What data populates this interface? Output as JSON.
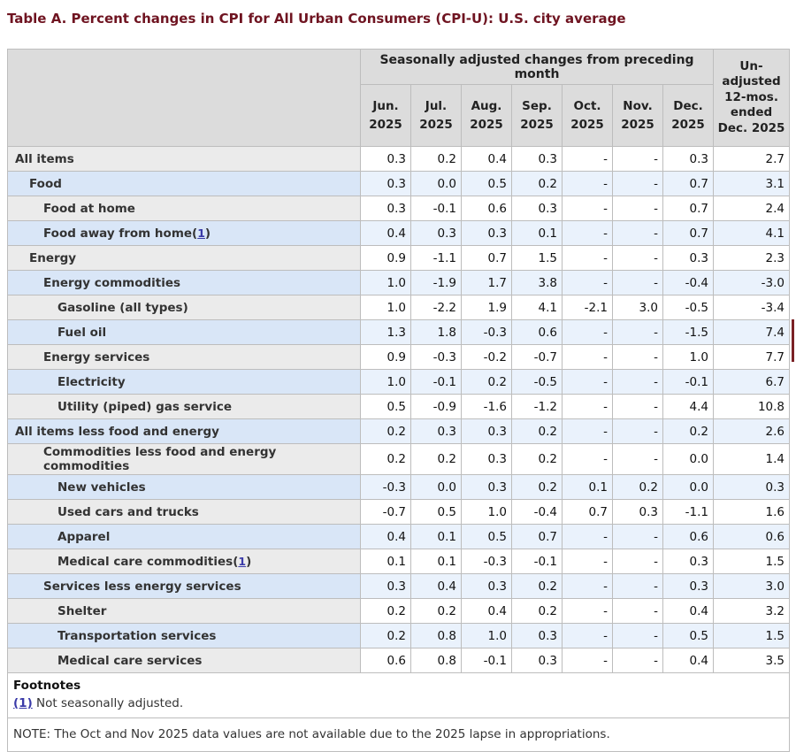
{
  "title": "Table A. Percent changes in CPI for All Urban Consumers (CPI-U): U.S. city average",
  "accent_colors": {
    "title_maroon": "#6f1421",
    "header_gray": "#dcdcdc",
    "row_gray_label": "#ebebeb",
    "row_blue_label": "#d9e6f7",
    "row_blue_data": "#eaf2fc",
    "link_blue": "#3a3aa8",
    "scroll_mark_red": "#7b2125"
  },
  "table": {
    "header": {
      "group_label": "Seasonally adjusted changes from preceding month",
      "unadjusted_label": "Un-adjusted 12-mos. ended Dec. 2025",
      "months": [
        {
          "month": "Jun.",
          "year": "2025"
        },
        {
          "month": "Jul.",
          "year": "2025"
        },
        {
          "month": "Aug.",
          "year": "2025"
        },
        {
          "month": "Sep.",
          "year": "2025"
        },
        {
          "month": "Oct.",
          "year": "2025"
        },
        {
          "month": "Nov.",
          "year": "2025"
        },
        {
          "month": "Dec.",
          "year": "2025"
        }
      ]
    },
    "footnote_marker": {
      "open": "(",
      "ref": "1",
      "close": ")"
    },
    "rows": [
      {
        "label": "All items",
        "indent": 0,
        "footnote": false,
        "values": [
          "0.3",
          "0.2",
          "0.4",
          "0.3",
          "-",
          "-",
          "0.3",
          "2.7"
        ]
      },
      {
        "label": "Food",
        "indent": 1,
        "footnote": false,
        "values": [
          "0.3",
          "0.0",
          "0.5",
          "0.2",
          "-",
          "-",
          "0.7",
          "3.1"
        ]
      },
      {
        "label": "Food at home",
        "indent": 2,
        "footnote": false,
        "values": [
          "0.3",
          "-0.1",
          "0.6",
          "0.3",
          "-",
          "-",
          "0.7",
          "2.4"
        ]
      },
      {
        "label": "Food away from home",
        "indent": 2,
        "footnote": true,
        "values": [
          "0.4",
          "0.3",
          "0.3",
          "0.1",
          "-",
          "-",
          "0.7",
          "4.1"
        ]
      },
      {
        "label": "Energy",
        "indent": 1,
        "footnote": false,
        "values": [
          "0.9",
          "-1.1",
          "0.7",
          "1.5",
          "-",
          "-",
          "0.3",
          "2.3"
        ]
      },
      {
        "label": "Energy commodities",
        "indent": 2,
        "footnote": false,
        "values": [
          "1.0",
          "-1.9",
          "1.7",
          "3.8",
          "-",
          "-",
          "-0.4",
          "-3.0"
        ]
      },
      {
        "label": "Gasoline (all types)",
        "indent": 3,
        "footnote": false,
        "values": [
          "1.0",
          "-2.2",
          "1.9",
          "4.1",
          "-2.1",
          "3.0",
          "-0.5",
          "-3.4"
        ]
      },
      {
        "label": "Fuel oil",
        "indent": 3,
        "footnote": false,
        "values": [
          "1.3",
          "1.8",
          "-0.3",
          "0.6",
          "-",
          "-",
          "-1.5",
          "7.4"
        ]
      },
      {
        "label": "Energy services",
        "indent": 2,
        "footnote": false,
        "values": [
          "0.9",
          "-0.3",
          "-0.2",
          "-0.7",
          "-",
          "-",
          "1.0",
          "7.7"
        ]
      },
      {
        "label": "Electricity",
        "indent": 3,
        "footnote": false,
        "values": [
          "1.0",
          "-0.1",
          "0.2",
          "-0.5",
          "-",
          "-",
          "-0.1",
          "6.7"
        ]
      },
      {
        "label": "Utility (piped) gas service",
        "indent": 3,
        "footnote": false,
        "values": [
          "0.5",
          "-0.9",
          "-1.6",
          "-1.2",
          "-",
          "-",
          "4.4",
          "10.8"
        ]
      },
      {
        "label": "All items less food and energy",
        "indent": 0,
        "footnote": false,
        "values": [
          "0.2",
          "0.3",
          "0.3",
          "0.2",
          "-",
          "-",
          "0.2",
          "2.6"
        ]
      },
      {
        "label": "Commodities less food and energy commodities",
        "indent": 2,
        "footnote": false,
        "values": [
          "0.2",
          "0.2",
          "0.3",
          "0.2",
          "-",
          "-",
          "0.0",
          "1.4"
        ]
      },
      {
        "label": "New vehicles",
        "indent": 3,
        "footnote": false,
        "values": [
          "-0.3",
          "0.0",
          "0.3",
          "0.2",
          "0.1",
          "0.2",
          "0.0",
          "0.3"
        ]
      },
      {
        "label": "Used cars and trucks",
        "indent": 3,
        "footnote": false,
        "values": [
          "-0.7",
          "0.5",
          "1.0",
          "-0.4",
          "0.7",
          "0.3",
          "-1.1",
          "1.6"
        ]
      },
      {
        "label": "Apparel",
        "indent": 3,
        "footnote": false,
        "values": [
          "0.4",
          "0.1",
          "0.5",
          "0.7",
          "-",
          "-",
          "0.6",
          "0.6"
        ]
      },
      {
        "label": "Medical care commodities",
        "indent": 3,
        "footnote": true,
        "values": [
          "0.1",
          "0.1",
          "-0.3",
          "-0.1",
          "-",
          "-",
          "0.3",
          "1.5"
        ]
      },
      {
        "label": "Services less energy services",
        "indent": 2,
        "footnote": false,
        "values": [
          "0.3",
          "0.4",
          "0.3",
          "0.2",
          "-",
          "-",
          "0.3",
          "3.0"
        ]
      },
      {
        "label": "Shelter",
        "indent": 3,
        "footnote": false,
        "values": [
          "0.2",
          "0.2",
          "0.4",
          "0.2",
          "-",
          "-",
          "0.4",
          "3.2"
        ]
      },
      {
        "label": "Transportation services",
        "indent": 3,
        "footnote": false,
        "values": [
          "0.2",
          "0.8",
          "1.0",
          "0.3",
          "-",
          "-",
          "0.5",
          "1.5"
        ]
      },
      {
        "label": "Medical care services",
        "indent": 3,
        "footnote": false,
        "values": [
          "0.6",
          "0.8",
          "-0.1",
          "0.3",
          "-",
          "-",
          "0.4",
          "3.5"
        ]
      }
    ],
    "footnotes": {
      "heading": "Footnotes",
      "ref": "(1)",
      "text": " Not seasonally adjusted."
    },
    "note": "NOTE: The Oct and Nov 2025 data values are not available due to the 2025 lapse in appropriations."
  }
}
